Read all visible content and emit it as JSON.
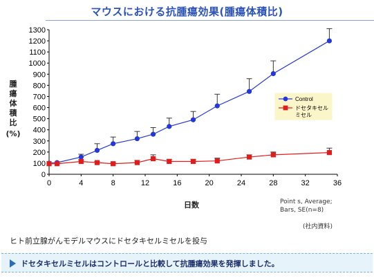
{
  "page": {
    "title": "マウスにおける抗腫瘍効果(腫瘍体積比)",
    "ylabel_chars": [
      "腫",
      "瘍",
      "体",
      "積",
      "比"
    ],
    "ylabel_unit": "(%)",
    "xlabel": "日数",
    "note_line1": "Point s, Average;",
    "note_line2": "Bars, SE(n=8)",
    "source": "(社内資料)",
    "caption": "ヒト前立腺がんモデルマウスにドセタキセルミセルを投与",
    "callout": "ドセタキセルミセルはコントロールと比較して抗腫瘍効果を発揮しました。",
    "colors": {
      "control": "#2338d6",
      "micelle": "#e01c1c",
      "title": "#2a52b8",
      "legend_bg": "#fbf6c9"
    }
  },
  "chart_data": {
    "type": "line",
    "xlabel": "日数",
    "ylabel": "腫瘍体積比(%)",
    "xlim": [
      0,
      36
    ],
    "ylim": [
      0,
      1300
    ],
    "xticks": [
      0,
      4,
      8,
      12,
      16,
      20,
      24,
      28,
      32,
      36
    ],
    "yticks": [
      0,
      100,
      200,
      300,
      400,
      500,
      600,
      700,
      800,
      900,
      1000,
      1100,
      1200,
      1300
    ],
    "legend_position": "right",
    "series": [
      {
        "name": "Control",
        "color": "#2338d6",
        "marker": "circle",
        "x": [
          0,
          1,
          4,
          6,
          8,
          11,
          13,
          15,
          18,
          21,
          25,
          28,
          35
        ],
        "y": [
          100,
          105,
          155,
          215,
          275,
          320,
          360,
          430,
          490,
          615,
          745,
          905,
          1200
        ],
        "se": [
          0,
          0,
          25,
          60,
          60,
          65,
          60,
          75,
          75,
          105,
          115,
          115,
          110
        ]
      },
      {
        "name": "ドセタキセル ミセル",
        "color": "#e01c1c",
        "marker": "square",
        "x": [
          0,
          1,
          4,
          6,
          8,
          11,
          13,
          15,
          18,
          21,
          25,
          28,
          35
        ],
        "y": [
          95,
          95,
          115,
          105,
          95,
          105,
          140,
          115,
          115,
          120,
          155,
          175,
          195
        ],
        "se": [
          0,
          0,
          15,
          10,
          10,
          20,
          35,
          20,
          20,
          25,
          20,
          25,
          40
        ]
      }
    ]
  }
}
